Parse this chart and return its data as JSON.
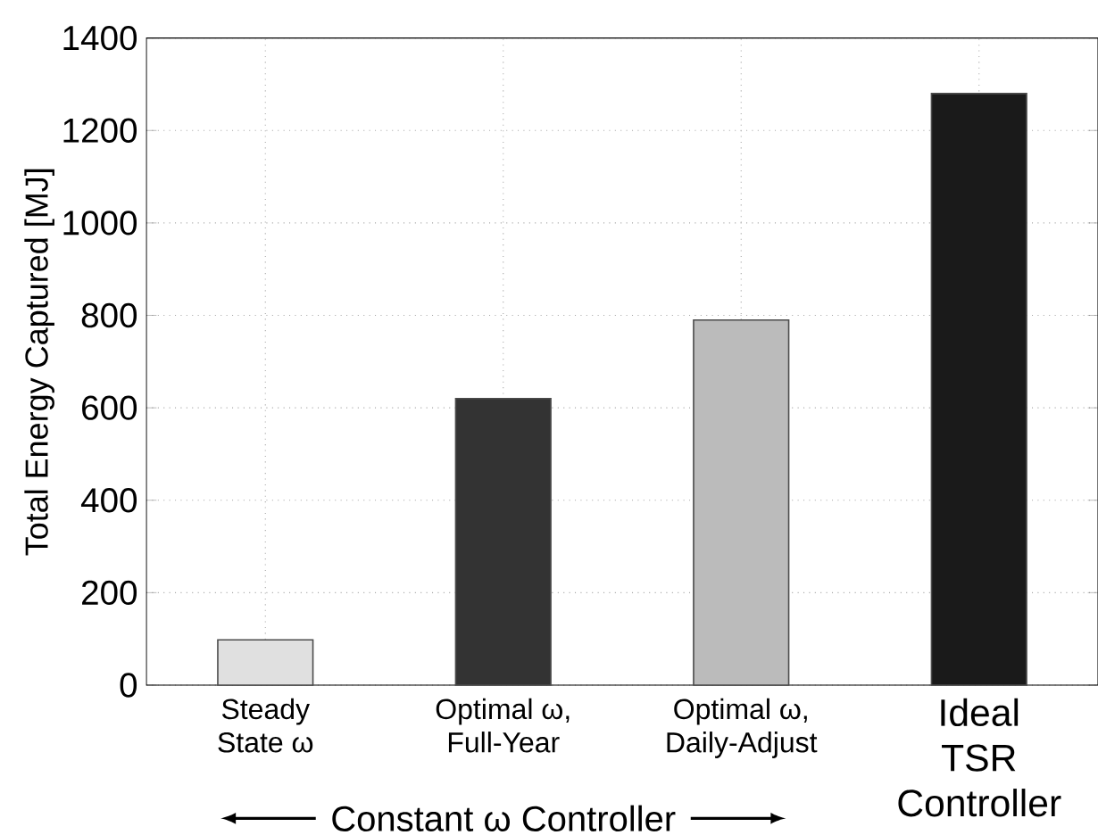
{
  "chart_data": {
    "type": "bar",
    "categories": [
      "Steady State ω",
      "Optimal ω, Full-Year",
      "Optimal ω, Daily-Adjust",
      "Ideal TSR Controller"
    ],
    "values": [
      98,
      620,
      790,
      1280
    ],
    "colors": [
      "#e0e0e0",
      "#333333",
      "#bbbbbb",
      "#1a1a1a"
    ],
    "ylabel": "Total Energy Captured [MJ]",
    "ylim": [
      0,
      1400
    ],
    "yticks": [
      0,
      200,
      400,
      600,
      800,
      1000,
      1200,
      1400
    ],
    "grid": true,
    "annotations": [
      "Constant ω Controller"
    ]
  }
}
